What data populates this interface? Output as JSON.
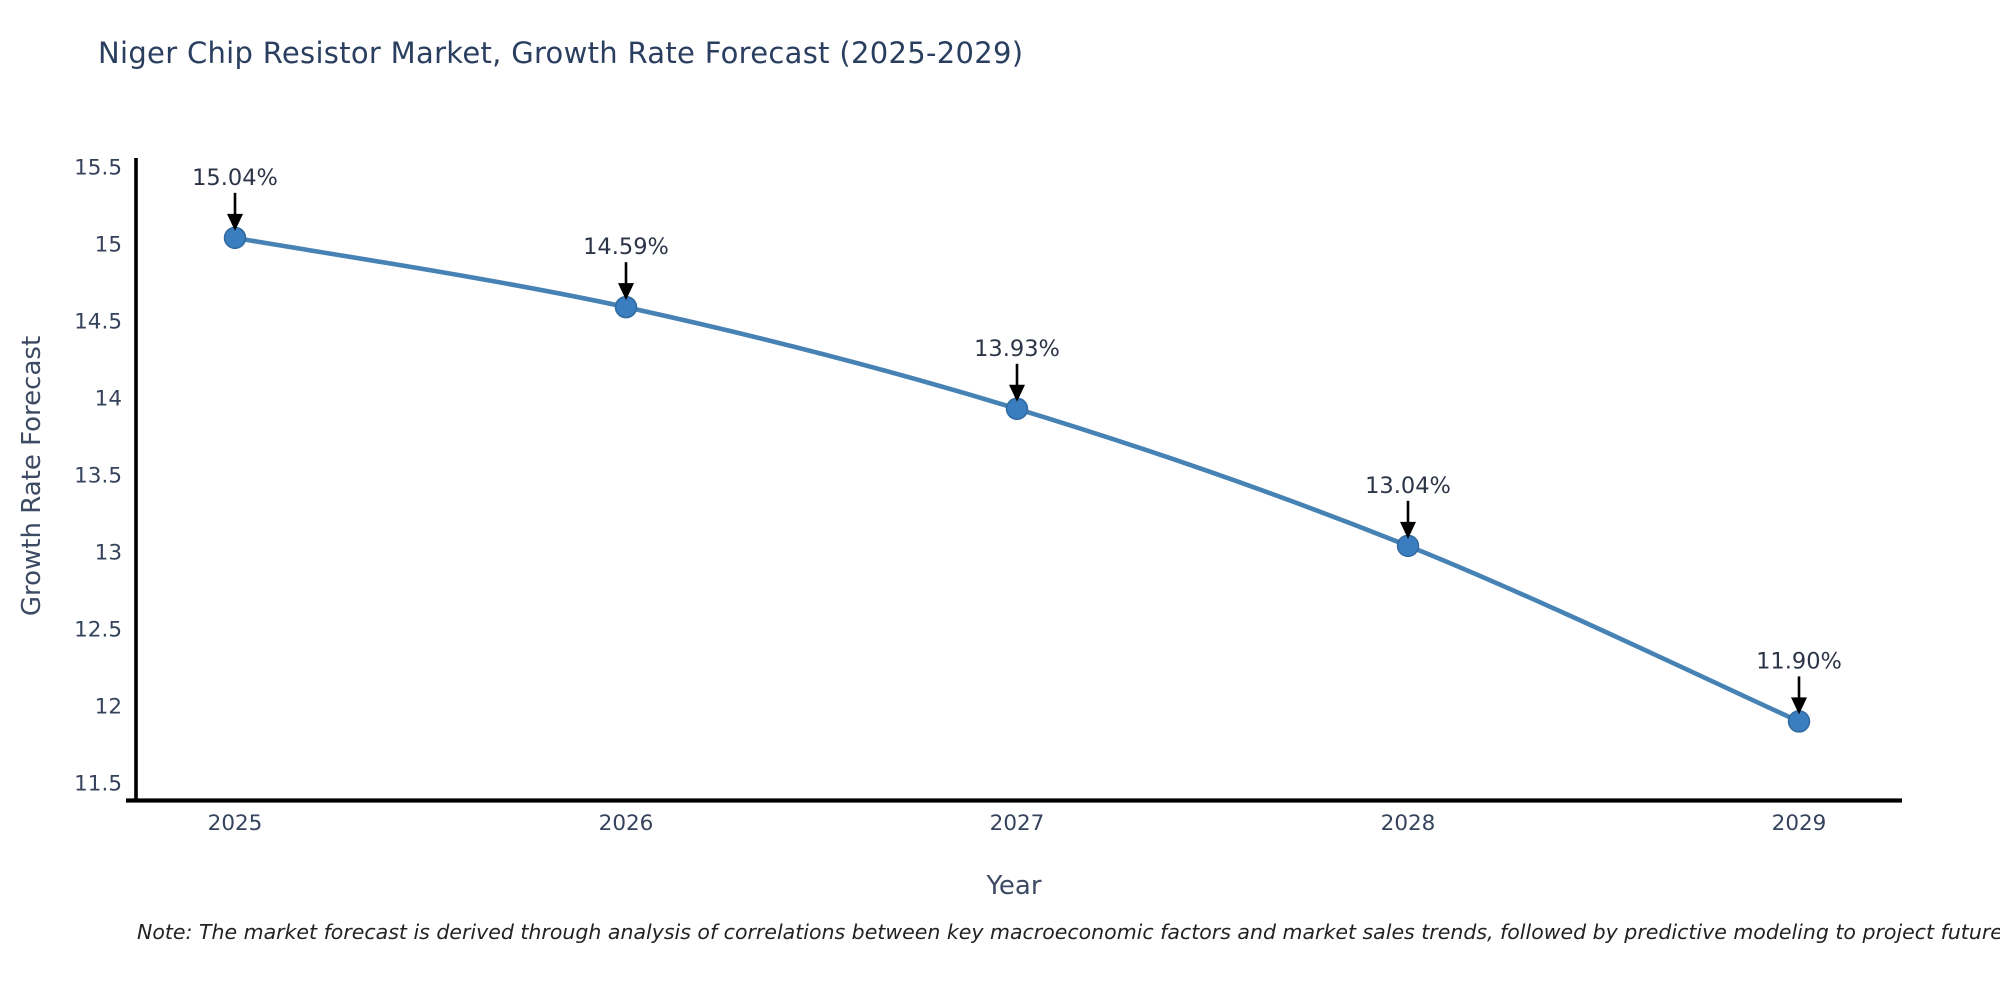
{
  "title": "Niger Chip Resistor Market, Growth Rate Forecast (2025-2029)",
  "note": "Note: The market forecast is derived through analysis of correlations between key macroeconomic factors and market sales trends, followed by predictive modeling to project future sal",
  "chart_data": {
    "type": "line",
    "title": "Niger Chip Resistor Market, Growth Rate Forecast (2025-2029)",
    "xlabel": "Year",
    "ylabel": "Growth Rate Forecast",
    "x": [
      "2025",
      "2026",
      "2027",
      "2028",
      "2029"
    ],
    "values": [
      15.04,
      14.59,
      13.93,
      13.04,
      11.9
    ],
    "point_labels": [
      "15.04%",
      "14.59%",
      "13.93%",
      "13.04%",
      "11.90%"
    ],
    "ylim": [
      11.5,
      15.5
    ],
    "yticks": [
      11.5,
      12,
      12.5,
      13,
      13.5,
      14,
      14.5,
      15,
      15.5
    ],
    "grid": false,
    "legend": "none",
    "colors": {
      "line": "#4682b4",
      "marker_fill": "#3a7ebf",
      "marker_edge": "#31699f",
      "axis": "#000000",
      "annotation_arrow": "#000000",
      "title_text": "#2a3f5f",
      "tick_text": "#36435c"
    }
  }
}
